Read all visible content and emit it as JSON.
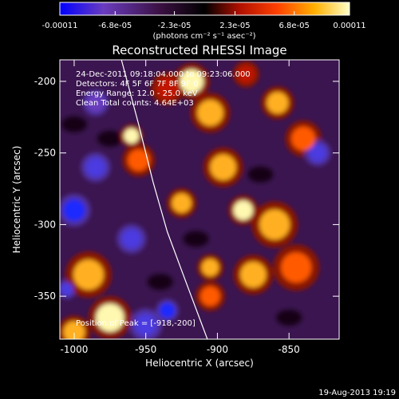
{
  "chart_data": {
    "type": "heatmap",
    "title": "Reconstructed RHESSI Image",
    "xlabel": "Heliocentric X (arcsec)",
    "ylabel": "Heliocentric Y (arcsec)",
    "xlim": [
      -1010,
      -815
    ],
    "ylim": [
      -380,
      -185
    ],
    "x_ticks": [
      -1000,
      -950,
      -900,
      -850
    ],
    "y_ticks": [
      -200,
      -250,
      -300,
      -350
    ],
    "colorbar": {
      "range": [
        -0.00011,
        0.00011
      ],
      "tick_values": [
        -0.00011,
        -6.8e-05,
        -2.3e-05,
        2.3e-05,
        6.8e-05,
        0.00011
      ],
      "tick_labels": [
        "-0.00011",
        "-6.8e-05",
        "-2.3e-05",
        "2.3e-05",
        "6.8e-05",
        "0.00011"
      ],
      "unit_label": "(photons cm⁻² s⁻¹ asec⁻²)",
      "colors": [
        "#0000ff",
        "#6a3cbf",
        "#3a1040",
        "#000000",
        "#b01000",
        "#ff4000",
        "#ffb000",
        "#ffffc8"
      ]
    },
    "annotations": [
      "24-Dec-2011 09:18:04.000 to 09:23:06.000",
      "Detectors: 4F 5F 6F 7F 8F 9F 0",
      "Energy Range: 12.0 - 25.0 keV",
      "Clean     Total counts: 4.64E+03"
    ],
    "peak_label": "Position of Peak = [-918,-200]",
    "peak": {
      "x": -918,
      "y": -200
    },
    "limb": [
      {
        "x": -967,
        "y": -185
      },
      {
        "x": -955,
        "y": -230
      },
      {
        "x": -945,
        "y": -270
      },
      {
        "x": -935,
        "y": -305
      },
      {
        "x": -922,
        "y": -340
      },
      {
        "x": -907,
        "y": -380
      }
    ],
    "sources": [
      {
        "x": -918,
        "y": -200,
        "v": 0.00011,
        "r": 11
      },
      {
        "x": -905,
        "y": -222,
        "v": 9e-05,
        "r": 12
      },
      {
        "x": -896,
        "y": -260,
        "v": 8e-05,
        "r": 12
      },
      {
        "x": -925,
        "y": -285,
        "v": 9e-05,
        "r": 9
      },
      {
        "x": -955,
        "y": -255,
        "v": 7e-05,
        "r": 10
      },
      {
        "x": -960,
        "y": -238,
        "v": 0.0001,
        "r": 7
      },
      {
        "x": -882,
        "y": -290,
        "v": 0.0001,
        "r": 9
      },
      {
        "x": -860,
        "y": -300,
        "v": 8e-05,
        "r": 14
      },
      {
        "x": -875,
        "y": -335,
        "v": 9e-05,
        "r": 12
      },
      {
        "x": -845,
        "y": -330,
        "v": 7e-05,
        "r": 14
      },
      {
        "x": -840,
        "y": -240,
        "v": 6e-05,
        "r": 11
      },
      {
        "x": -858,
        "y": -215,
        "v": 8e-05,
        "r": 10
      },
      {
        "x": -905,
        "y": -330,
        "v": 8e-05,
        "r": 8
      },
      {
        "x": -905,
        "y": -350,
        "v": 7e-05,
        "r": 9
      },
      {
        "x": -990,
        "y": -335,
        "v": 9e-05,
        "r": 14
      },
      {
        "x": -975,
        "y": -365,
        "v": 0.0001,
        "r": 13
      },
      {
        "x": -1000,
        "y": -375,
        "v": 8e-05,
        "r": 10
      },
      {
        "x": -935,
        "y": -205,
        "v": 5e-05,
        "r": 10
      },
      {
        "x": -880,
        "y": -195,
        "v": 5e-05,
        "r": 8
      },
      {
        "x": -950,
        "y": -370,
        "v": -6e-05,
        "r": 10
      },
      {
        "x": -935,
        "y": -360,
        "v": -8e-05,
        "r": 7
      },
      {
        "x": -985,
        "y": -260,
        "v": -6e-05,
        "r": 9
      },
      {
        "x": -1000,
        "y": -290,
        "v": -8e-05,
        "r": 10
      },
      {
        "x": -960,
        "y": -310,
        "v": -7e-05,
        "r": 9
      },
      {
        "x": -830,
        "y": -250,
        "v": -7e-05,
        "r": 8
      },
      {
        "x": -985,
        "y": -215,
        "v": -5e-05,
        "r": 8
      },
      {
        "x": -1005,
        "y": -345,
        "v": -6e-05,
        "r": 6
      }
    ]
  },
  "footer": {
    "timestamp": "19-Aug-2013 19:19"
  }
}
